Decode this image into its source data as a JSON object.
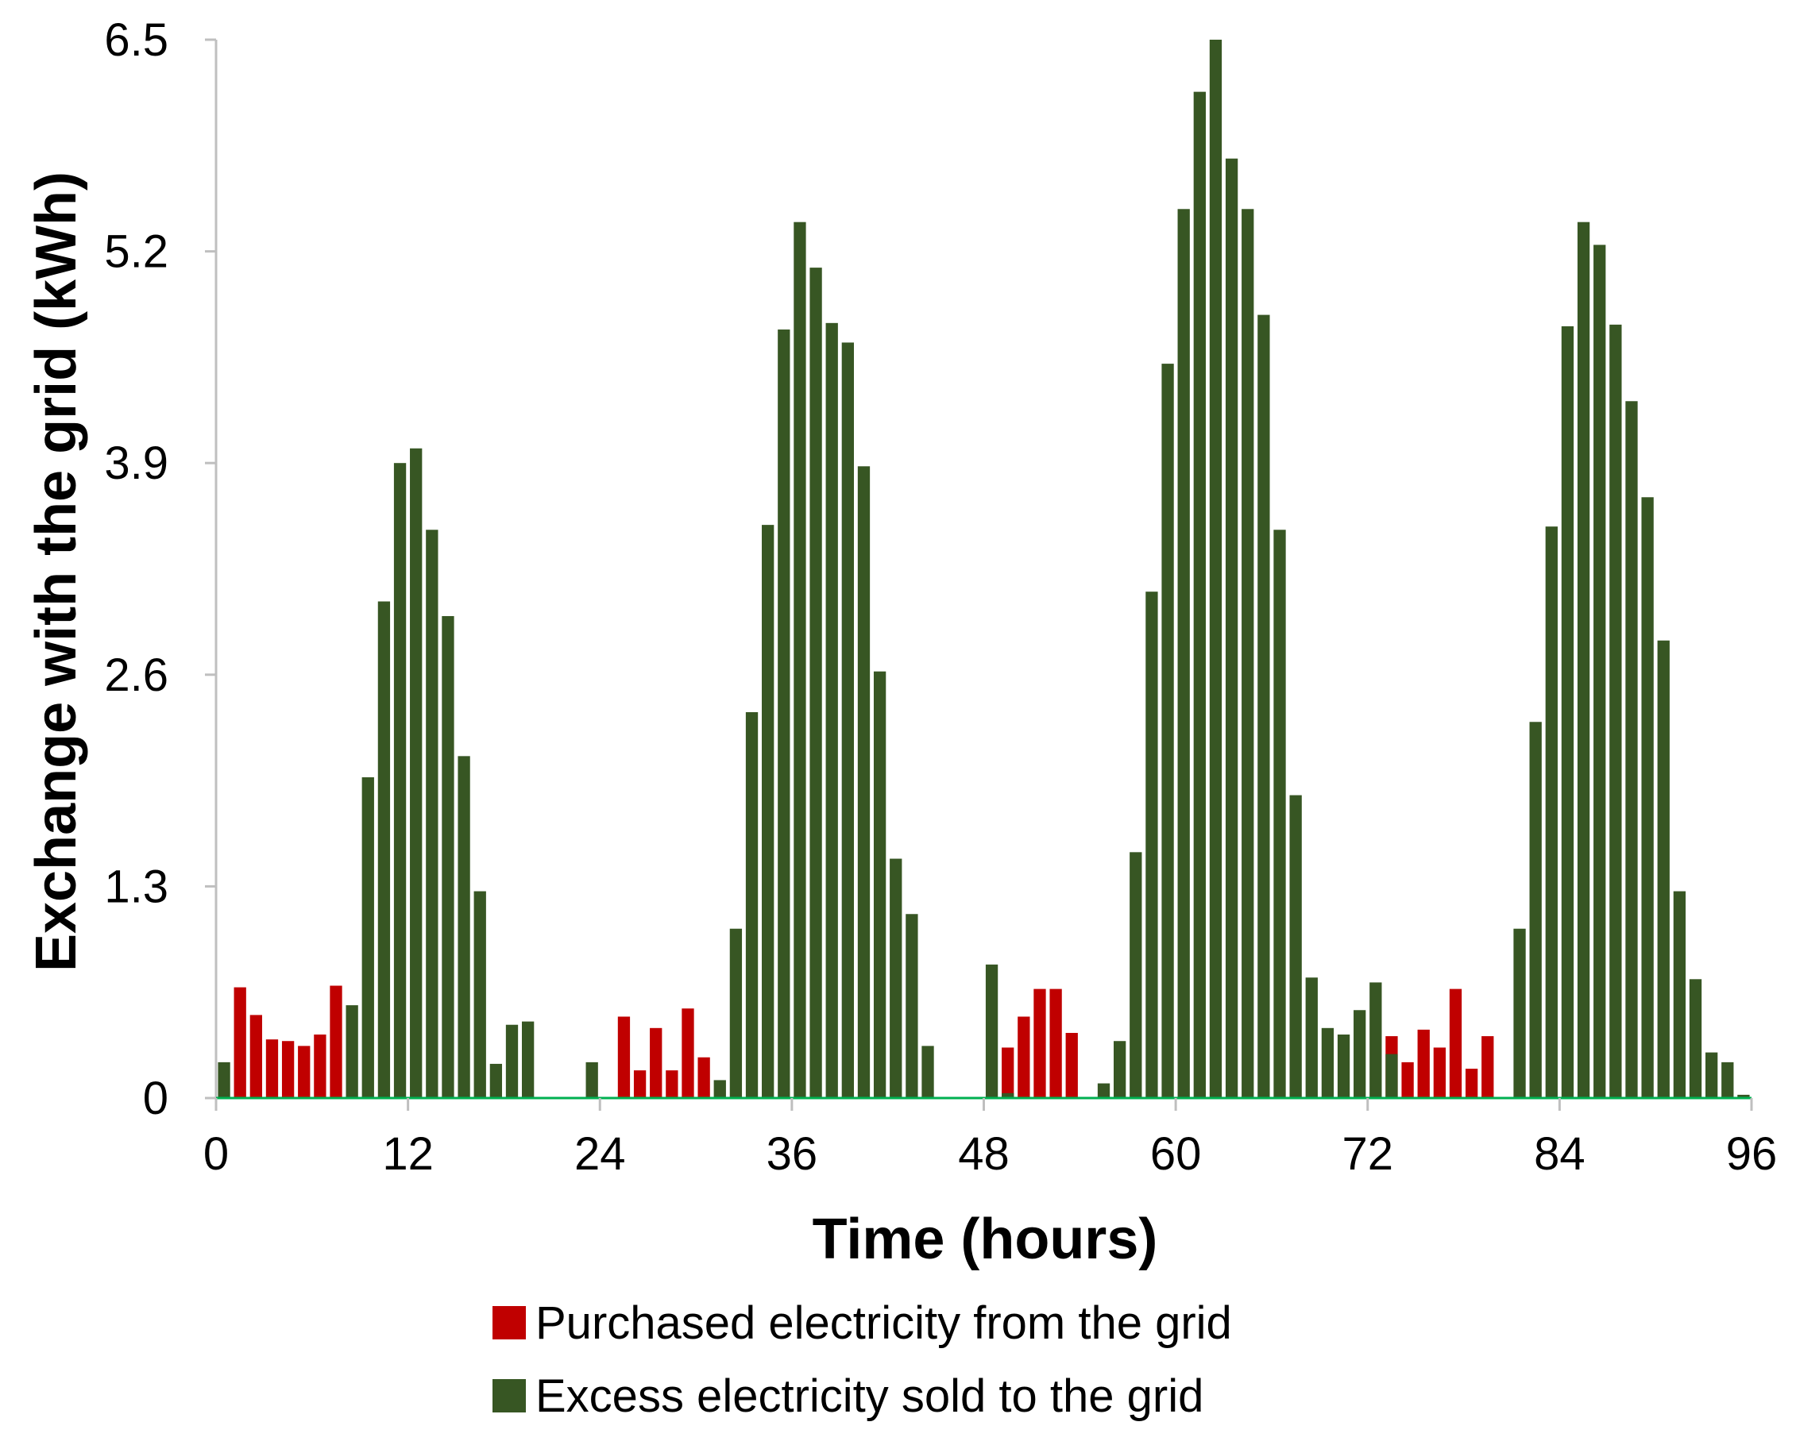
{
  "chart_data": {
    "type": "bar",
    "xlabel": "Time (hours)",
    "ylabel": "Exchange with the grid (kWh)",
    "xlim": [
      0,
      96
    ],
    "ylim": [
      0,
      6.5
    ],
    "xticks": [
      "0",
      "12",
      "24",
      "36",
      "48",
      "60",
      "72",
      "84",
      "96"
    ],
    "yticks": [
      "0",
      "1.3",
      "2.6",
      "3.9",
      "5.2",
      "6.5"
    ],
    "x": [
      1,
      2,
      3,
      4,
      5,
      6,
      7,
      8,
      9,
      10,
      11,
      12,
      13,
      14,
      15,
      16,
      17,
      18,
      19,
      20,
      21,
      22,
      23,
      24,
      25,
      26,
      27,
      28,
      29,
      30,
      31,
      32,
      33,
      34,
      35,
      36,
      37,
      38,
      39,
      40,
      41,
      42,
      43,
      44,
      45,
      46,
      47,
      48,
      49,
      50,
      51,
      52,
      53,
      54,
      55,
      56,
      57,
      58,
      59,
      60,
      61,
      62,
      63,
      64,
      65,
      66,
      67,
      68,
      69,
      70,
      71,
      72,
      73,
      74,
      75,
      76,
      77,
      78,
      79,
      80,
      81,
      82,
      83,
      84,
      85,
      86,
      87,
      88,
      89,
      90,
      91,
      92,
      93,
      94,
      95,
      96
    ],
    "series": [
      {
        "name": "Purchased electricity from the grid",
        "color": "#c00000",
        "values": [
          0,
          0.68,
          0.51,
          0.36,
          0.35,
          0.32,
          0.39,
          0.69,
          0,
          0,
          0,
          0,
          0,
          0,
          0,
          0,
          0,
          0,
          0,
          0,
          0,
          0,
          0,
          0,
          0,
          0.5,
          0.17,
          0.43,
          0.17,
          0.55,
          0.25,
          0,
          0,
          0,
          0,
          0,
          0,
          0,
          0,
          0,
          0,
          0,
          0,
          0,
          0,
          0,
          0,
          0,
          0,
          0.31,
          0.5,
          0.67,
          0.67,
          0.4,
          0,
          0,
          0,
          0,
          0,
          0,
          0,
          0,
          0,
          0,
          0,
          0,
          0,
          0,
          0,
          0,
          0,
          0,
          0,
          0.38,
          0.22,
          0.42,
          0.31,
          0.67,
          0.18,
          0.38,
          0,
          0,
          0,
          0,
          0,
          0,
          0,
          0,
          0,
          0,
          0,
          0,
          0,
          0,
          0,
          0
        ]
      },
      {
        "name": "Excess electricity sold to the grid",
        "color": "#375623",
        "values": [
          0.22,
          0,
          0,
          0,
          0,
          0,
          0,
          0,
          0.57,
          1.97,
          3.05,
          3.9,
          3.99,
          3.49,
          2.96,
          2.1,
          1.27,
          0.21,
          0.45,
          0.47,
          0,
          0,
          0,
          0.22,
          0,
          0,
          0,
          0,
          0,
          0,
          0,
          0.11,
          1.04,
          2.37,
          3.52,
          4.72,
          5.38,
          5.1,
          4.76,
          4.64,
          3.88,
          2.62,
          1.47,
          1.13,
          0.32,
          0,
          0,
          0,
          0.82,
          0.03,
          0,
          0,
          0,
          0,
          0,
          0.09,
          0.35,
          1.51,
          3.11,
          4.51,
          5.46,
          6.18,
          6.5,
          5.77,
          5.46,
          4.81,
          3.49,
          1.86,
          0.74,
          0.43,
          0.39,
          0.54,
          0.71,
          0.27,
          0,
          0,
          0,
          0,
          0,
          0,
          0,
          1.04,
          2.31,
          3.51,
          4.74,
          5.38,
          5.24,
          4.75,
          4.28,
          3.69,
          2.81,
          1.27,
          0.73,
          0.28,
          0.22,
          0.02
        ]
      }
    ],
    "legend_position": "bottom",
    "grid": false
  },
  "legend": {
    "items": [
      {
        "label": "Purchased electricity from the grid",
        "color": "#c00000"
      },
      {
        "label": "Excess electricity sold to the grid",
        "color": "#375623"
      }
    ]
  }
}
